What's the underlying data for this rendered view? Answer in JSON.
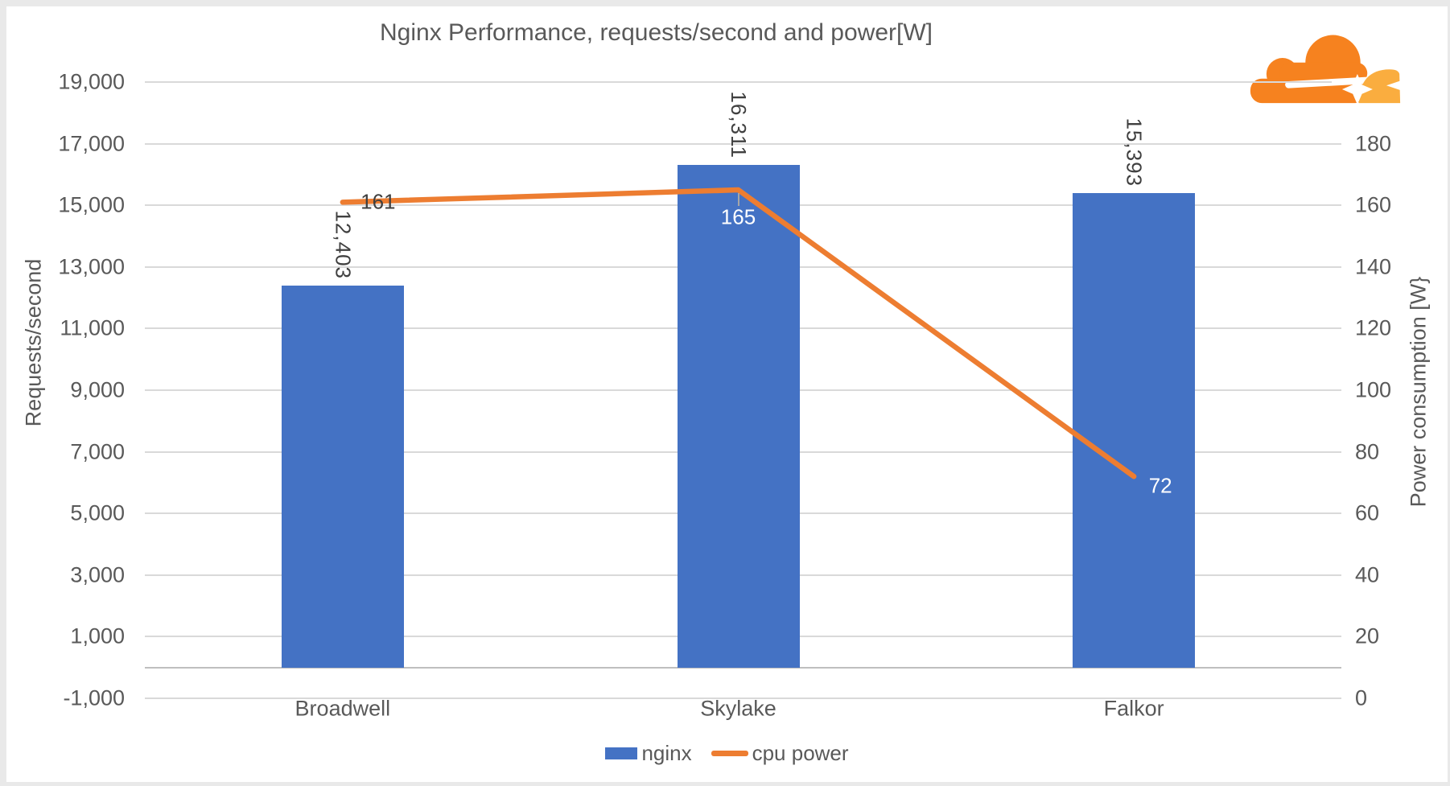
{
  "window": {
    "background": "#e9e9e9",
    "card_background": "#ffffff"
  },
  "title": "Nginx Performance, requests/second and power[W]",
  "logo": {
    "name": "cloudflare-logo",
    "primary_color": "#F6821F",
    "secondary_color": "#FAAD3F"
  },
  "chart_data": {
    "type": "bar-line-combo",
    "title": "Nginx Performance, requests/second and power[W]",
    "categories": [
      "Broadwell",
      "Skylake",
      "Falkor"
    ],
    "series": [
      {
        "name": "nginx",
        "type": "bar",
        "axis": "left",
        "color": "#4472C4",
        "values": [
          12403,
          16311,
          15393
        ],
        "data_labels": [
          "12,403",
          "16,311",
          "15,393"
        ],
        "data_label_style": "rotated-90-above-bar",
        "data_label_color": "#404040"
      },
      {
        "name": "cpu power",
        "type": "line",
        "axis": "right",
        "color": "#ED7D31",
        "values": [
          161,
          165,
          72
        ],
        "data_labels": [
          "161",
          "165",
          "72"
        ],
        "data_label_colors": [
          "#404040",
          "#ffffff",
          "#ffffff"
        ]
      }
    ],
    "left_axis": {
      "label": "Requests/second",
      "min": -1000,
      "max": 19000,
      "step": 2000,
      "ticks": [
        "19,000",
        "17,000",
        "15,000",
        "13,000",
        "11,000",
        "9,000",
        "7,000",
        "5,000",
        "3,000",
        "1,000",
        "-1,000"
      ]
    },
    "right_axis": {
      "label": "Power consumption [W}",
      "min": 0,
      "max": 200,
      "step": 20,
      "ticks": [
        "180",
        "160",
        "140",
        "120",
        "100",
        "80",
        "60",
        "40",
        "20",
        "0"
      ]
    },
    "grid": true,
    "legend_position": "bottom"
  },
  "legend": {
    "items": [
      {
        "label": "nginx",
        "marker": "rect",
        "color": "#4472C4"
      },
      {
        "label": "cpu power",
        "marker": "line",
        "color": "#ED7D31"
      }
    ]
  },
  "colors": {
    "grid": "#D9D9D9",
    "axis_line": "#BFBFBF",
    "text": "#595959",
    "bar": "#4472C4",
    "line": "#ED7D31"
  }
}
